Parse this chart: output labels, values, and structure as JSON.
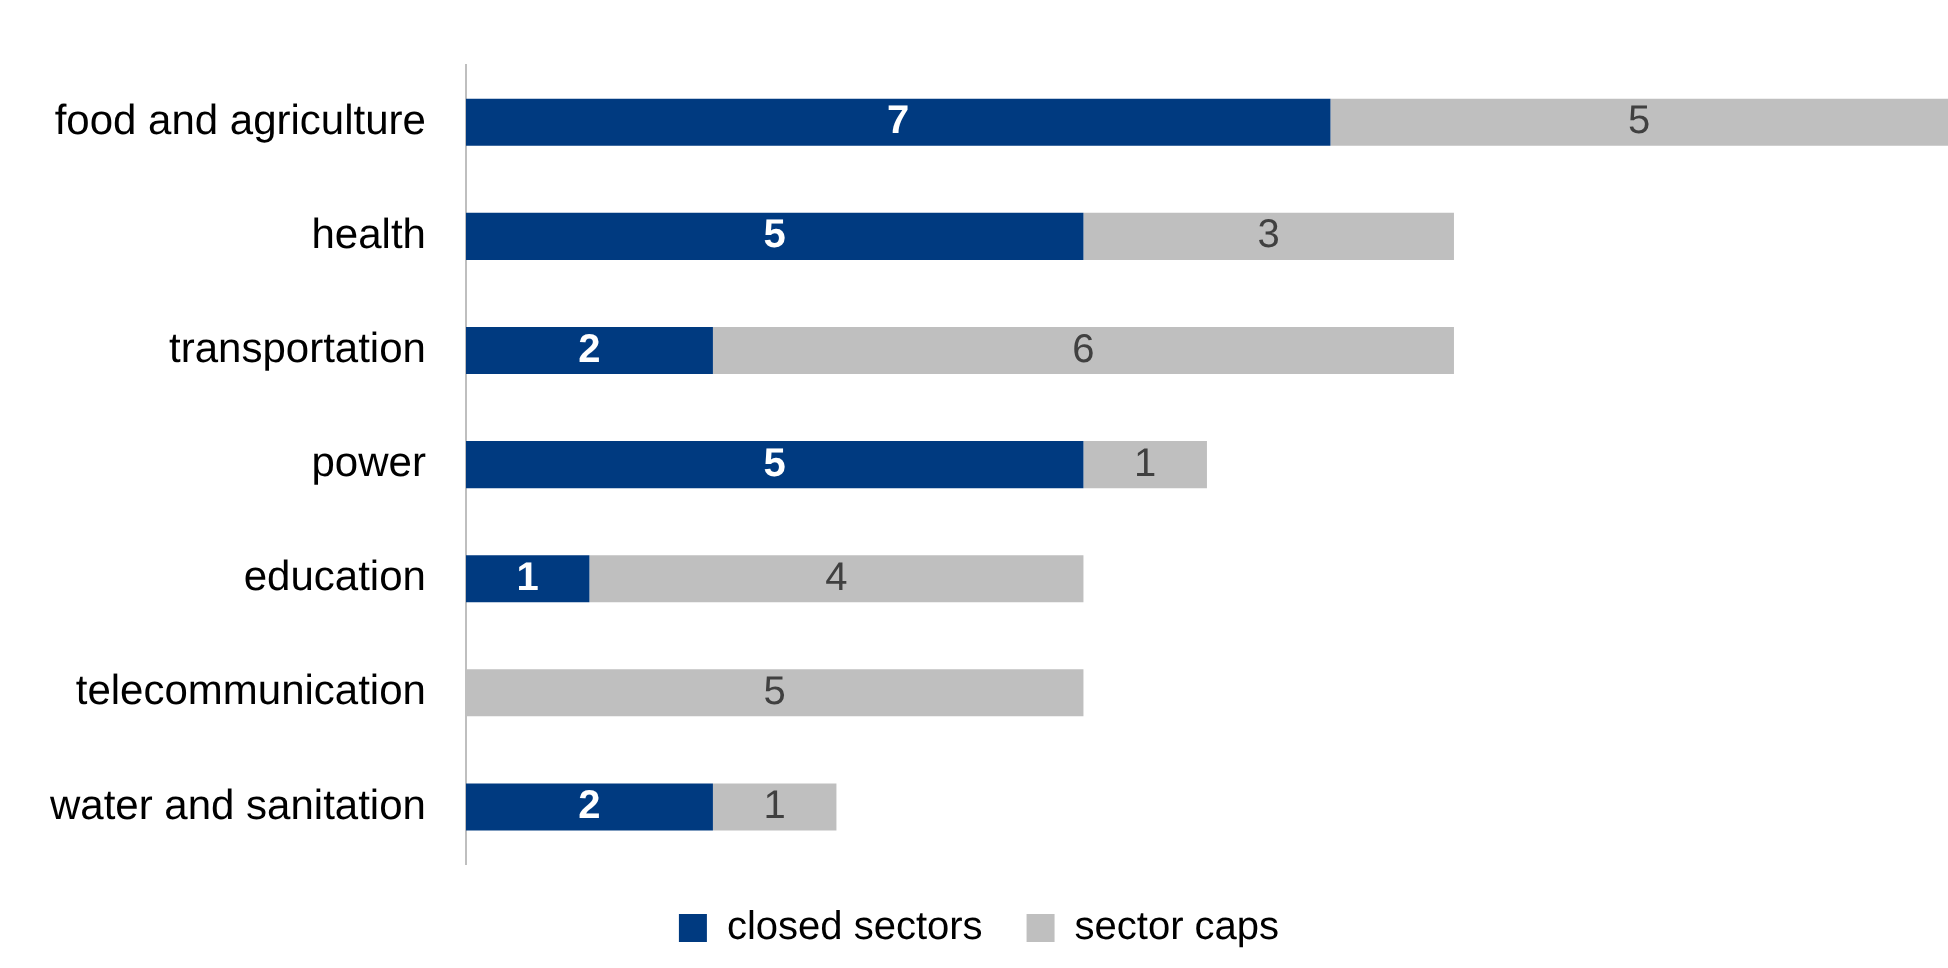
{
  "chart_data": {
    "type": "bar",
    "orientation": "horizontal",
    "stacked": true,
    "legend": "bottom",
    "tick_labels": "y",
    "categories": [
      "food and agriculture",
      "health",
      "transportation",
      "power",
      "education",
      "telecommunication",
      "water and sanitation"
    ],
    "series": [
      {
        "name": "closed sectors",
        "color": "#003a80",
        "values": [
          7,
          5,
          2,
          5,
          1,
          0,
          2
        ],
        "value_labels": [
          "7",
          "5",
          "2",
          "5",
          "1",
          null,
          "2"
        ]
      },
      {
        "name": "sector caps",
        "color": "#bfbfbf",
        "values": [
          5,
          3,
          6,
          1,
          4,
          5,
          1
        ],
        "value_labels": [
          "5",
          "3",
          "6",
          "1",
          "4",
          "5",
          "1"
        ]
      }
    ]
  }
}
